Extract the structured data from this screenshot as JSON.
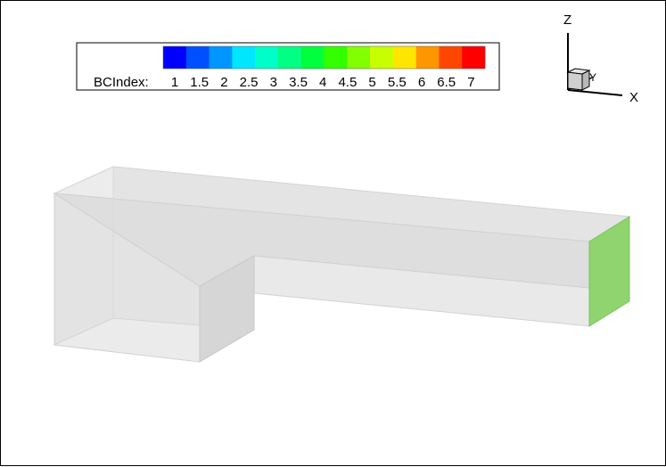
{
  "legend": {
    "title": "BCIndex:",
    "ticks": [
      "1",
      "1.5",
      "2",
      "2.5",
      "3",
      "3.5",
      "4",
      "4.5",
      "5",
      "5.5",
      "6",
      "6.5",
      "7"
    ],
    "swatches": [
      "#0000ff",
      "#0050ff",
      "#0096ff",
      "#00e6ff",
      "#00ffc8",
      "#00ff82",
      "#00ff3c",
      "#32ff00",
      "#82ff00",
      "#c8ff00",
      "#ffe600",
      "#ff9600",
      "#ff4600",
      "#ff0000"
    ]
  },
  "axes": {
    "x_label": "X",
    "y_label": "Y",
    "z_label": "Z"
  },
  "colors": {
    "body_fill": "#e2e2e2",
    "outlet_face": "#8fd46f"
  }
}
